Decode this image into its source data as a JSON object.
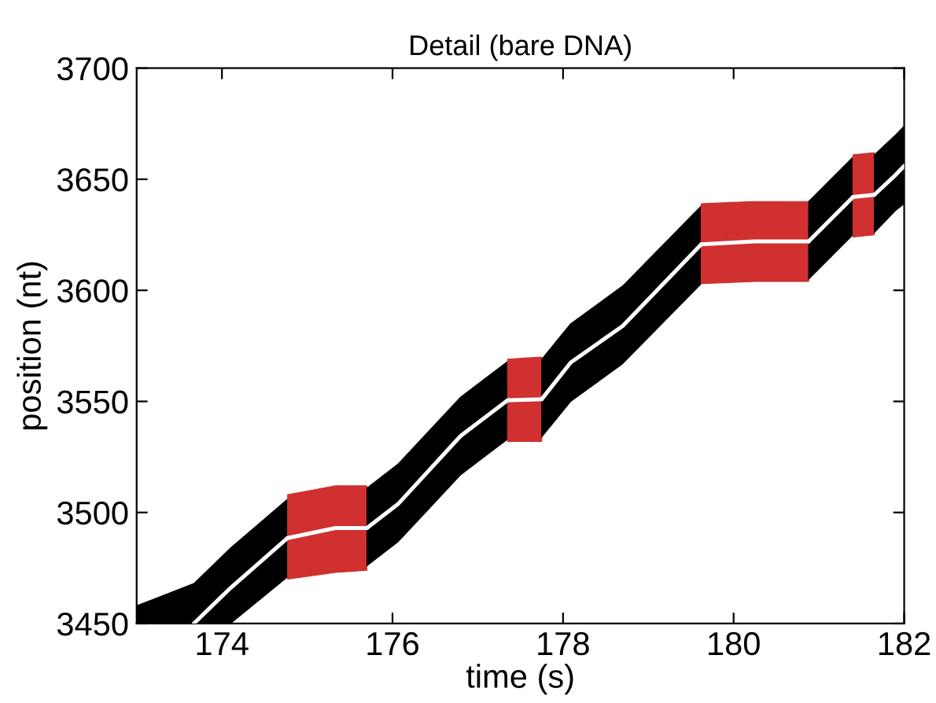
{
  "chart_data": {
    "type": "line",
    "title": "Detail (bare DNA)",
    "xlabel": "time (s)",
    "ylabel": "position (nt)",
    "xlim": [
      173,
      182
    ],
    "xticks": [
      174,
      176,
      178,
      180,
      182
    ],
    "ylim": [
      3450,
      3700
    ],
    "yticks": [
      3450,
      3500,
      3550,
      3600,
      3650,
      3700
    ],
    "grid": false,
    "legend": false,
    "series": [
      {
        "color": "#ffffff",
        "colors": [
          "#000000",
          "#000000",
          "#000000",
          "#000000"
        ],
        "x": [
          173.0,
          173.67,
          174.1,
          174.77
        ],
        "values": [
          null,
          3450,
          3466,
          3488.5
        ],
        "lower": [
          3450,
          3450,
          3450,
          3471
        ],
        "upper": [
          3458,
          3468,
          3484,
          3506
        ]
      },
      {
        "color": "#ffffff",
        "colors": [
          "#d03030",
          "#d03030",
          "#d03030"
        ],
        "x": [
          174.77,
          175.33,
          175.7
        ],
        "values": [
          3488.5,
          3493,
          3493
        ],
        "lower": [
          3470,
          3473,
          3474
        ],
        "upper": [
          3508,
          3512,
          3512
        ]
      },
      {
        "color": "#ffffff",
        "colors": [
          "#000000",
          "#000000",
          "#000000",
          "#000000"
        ],
        "x": [
          175.7,
          176.07,
          176.8,
          177.35
        ],
        "values": [
          3493,
          3504,
          3534.5,
          3550.5
        ],
        "lower": [
          3476,
          3487,
          3517,
          3533
        ],
        "upper": [
          3511,
          3522,
          3552,
          3568
        ]
      },
      {
        "color": "#ffffff",
        "colors": [
          "#d03030",
          "#d03030"
        ],
        "x": [
          177.35,
          177.75
        ],
        "values": [
          3550.5,
          3551
        ],
        "lower": [
          3532,
          3532
        ],
        "upper": [
          3569,
          3570
        ]
      },
      {
        "color": "#ffffff",
        "colors": [
          "#000000",
          "#000000",
          "#000000",
          "#000000"
        ],
        "x": [
          177.75,
          178.09,
          178.7,
          179.62
        ],
        "values": [
          3551,
          3567.5,
          3584,
          3620.7
        ],
        "lower": [
          3534,
          3550,
          3567,
          3603
        ],
        "upper": [
          3569,
          3585,
          3602,
          3638
        ]
      },
      {
        "color": "#ffffff",
        "colors": [
          "#d03030",
          "#d03030",
          "#d03030"
        ],
        "x": [
          179.62,
          180.24,
          180.88
        ],
        "values": [
          3620.7,
          3622,
          3622
        ],
        "lower": [
          3603,
          3604,
          3604
        ],
        "upper": [
          3639,
          3640,
          3640
        ]
      },
      {
        "color": "#ffffff",
        "colors": [
          "#000000",
          "#000000"
        ],
        "x": [
          180.88,
          181.4
        ],
        "values": [
          3622,
          3642
        ],
        "lower": [
          3605,
          3625
        ],
        "upper": [
          3640,
          3660
        ]
      },
      {
        "color": "#ffffff",
        "colors": [
          "#d03030",
          "#d03030"
        ],
        "x": [
          181.4,
          181.65
        ],
        "values": [
          3642,
          3643
        ],
        "lower": [
          3624,
          3625
        ],
        "upper": [
          3661,
          3662
        ]
      },
      {
        "color": "#ffffff",
        "colors": [
          "#000000",
          "#000000",
          "#000000"
        ],
        "x": [
          181.65,
          181.9,
          182.0
        ],
        "values": [
          3643,
          3652,
          3656
        ],
        "lower": [
          3626,
          3636,
          3639
        ],
        "upper": [
          3661,
          3670,
          3674
        ]
      }
    ]
  }
}
